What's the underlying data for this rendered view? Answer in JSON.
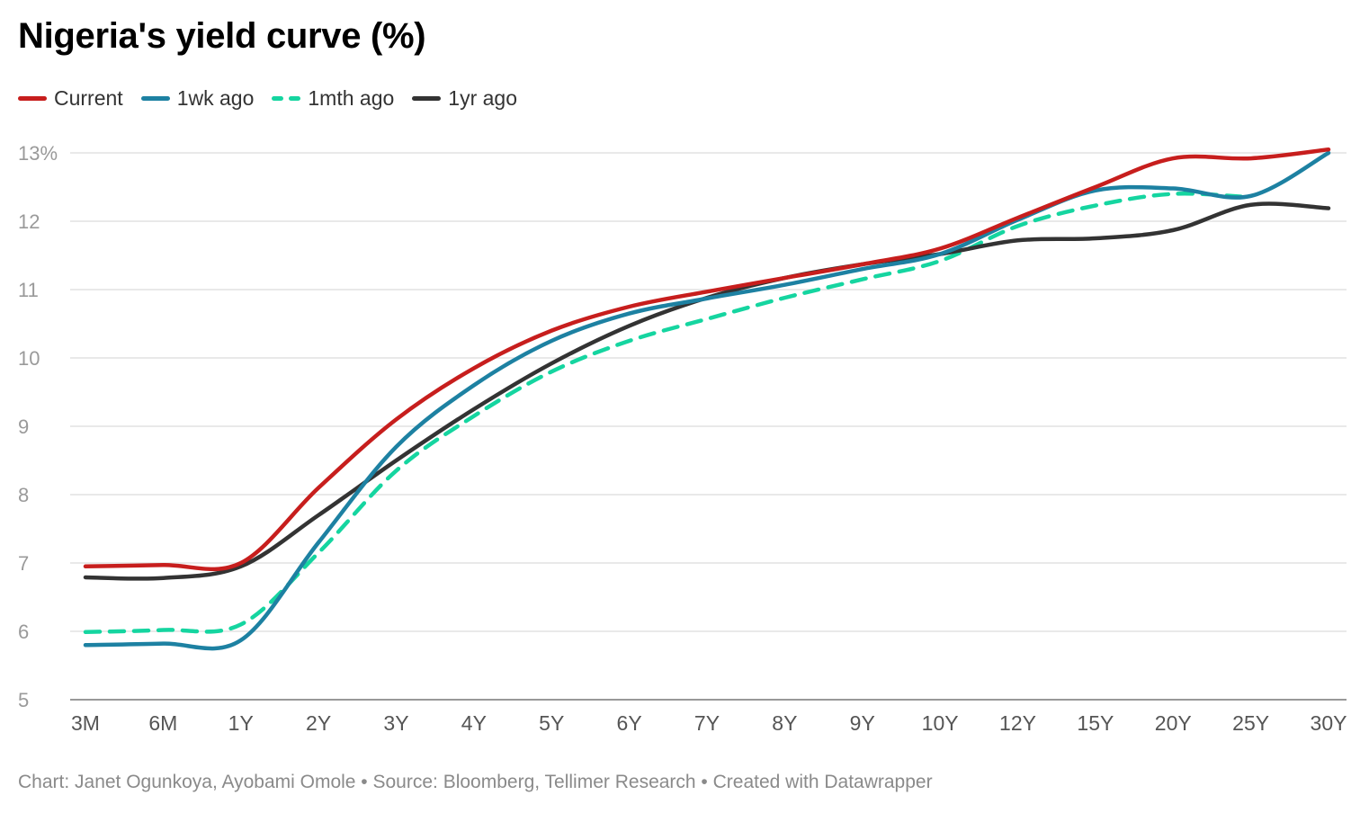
{
  "title": "Nigeria's yield curve (%)",
  "footer": "Chart: Janet Ogunkoya, Ayobami Omole • Source: Bloomberg, Tellimer Research • Created with Datawrapper",
  "chart_data": {
    "type": "line",
    "title": "Nigeria's yield curve (%)",
    "xlabel": "",
    "ylabel": "",
    "categories": [
      "3M",
      "6M",
      "1Y",
      "2Y",
      "3Y",
      "4Y",
      "5Y",
      "6Y",
      "7Y",
      "8Y",
      "9Y",
      "10Y",
      "12Y",
      "15Y",
      "20Y",
      "25Y",
      "30Y"
    ],
    "ylim": [
      5,
      13
    ],
    "yticks": [
      5,
      6,
      7,
      8,
      9,
      10,
      11,
      12,
      13
    ],
    "ytick_labels": [
      "5",
      "6",
      "7",
      "8",
      "9",
      "10",
      "11",
      "12",
      "13%"
    ],
    "grid": true,
    "legend_position": "top-left",
    "series": [
      {
        "name": "Current",
        "color": "#c71e1d",
        "dashed": false,
        "values": [
          6.95,
          6.97,
          7.0,
          8.1,
          9.1,
          9.85,
          10.4,
          10.75,
          10.97,
          11.17,
          11.37,
          11.6,
          12.05,
          12.5,
          12.92,
          12.92,
          13.05
        ]
      },
      {
        "name": "1wk ago",
        "color": "#1d81a2",
        "dashed": false,
        "values": [
          5.8,
          5.82,
          5.87,
          7.3,
          8.7,
          9.6,
          10.25,
          10.65,
          10.87,
          11.07,
          11.3,
          11.52,
          12.02,
          12.45,
          12.48,
          12.37,
          13.0
        ]
      },
      {
        "name": "1mth ago",
        "color": "#15d5a0",
        "dashed": true,
        "values": [
          5.99,
          6.02,
          6.1,
          7.15,
          8.35,
          9.15,
          9.8,
          10.25,
          10.57,
          10.88,
          11.15,
          11.42,
          11.93,
          12.23,
          12.4,
          12.35,
          null
        ]
      },
      {
        "name": "1yr ago",
        "color": "#333333",
        "dashed": false,
        "values": [
          6.79,
          6.78,
          6.95,
          7.7,
          8.5,
          9.25,
          9.92,
          10.47,
          10.88,
          11.17,
          11.37,
          11.52,
          11.72,
          11.75,
          11.87,
          12.24,
          12.19
        ]
      }
    ]
  }
}
